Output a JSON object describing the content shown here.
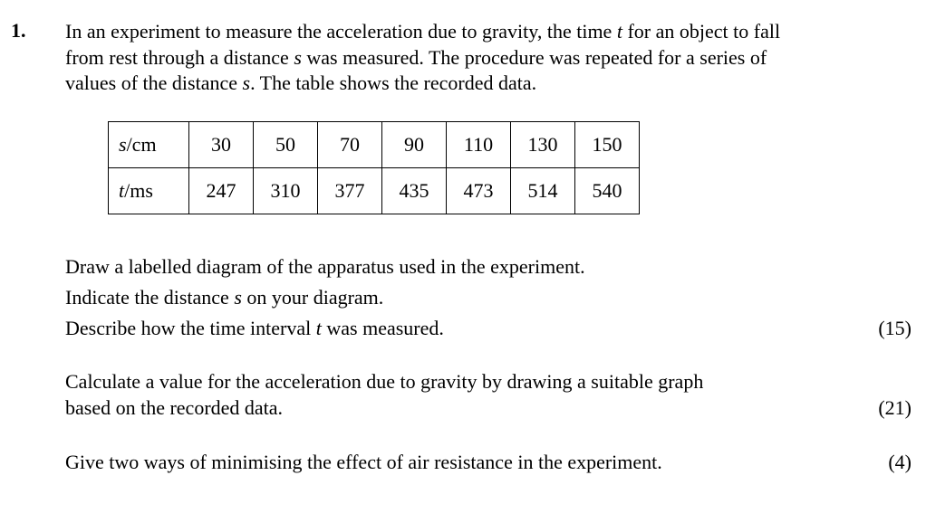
{
  "question": {
    "number": "1.",
    "intro": {
      "line1": {
        "a": "In an experiment to measure the acceleration due to gravity, the time ",
        "var_t": "t",
        "b": " for an object to fall"
      },
      "line2": {
        "a": "from rest through a distance ",
        "var_s": "s",
        "b": " was measured.  The procedure was repeated for a series of"
      },
      "line3": {
        "a": "values of the distance ",
        "var_s": "s",
        "b": ".  The table shows the recorded data."
      }
    },
    "table": {
      "rows": [
        {
          "var": "s",
          "unit": "/cm",
          "values": [
            "30",
            "50",
            "70",
            "90",
            "110",
            "130",
            "150"
          ]
        },
        {
          "var": "t",
          "unit": "/ms",
          "values": [
            "247",
            "310",
            "377",
            "435",
            "473",
            "514",
            "540"
          ]
        }
      ]
    },
    "parts": {
      "p1": {
        "a": "Draw a labelled diagram of the apparatus used in the experiment."
      },
      "p2": {
        "a": "Indicate the distance ",
        "var_s": "s",
        "b": " on your diagram."
      },
      "p3": {
        "a": "Describe how the time interval ",
        "var_t": "t",
        "b": " was measured.",
        "marks": "(15)"
      },
      "p4": {
        "line1": "Calculate a value for the acceleration due to gravity by drawing a suitable graph",
        "line2": "based on the recorded data.",
        "marks": "(21)"
      },
      "p5": {
        "a": "Give two ways of minimising the effect of air resistance in the experiment.",
        "marks": "(4)"
      }
    }
  }
}
